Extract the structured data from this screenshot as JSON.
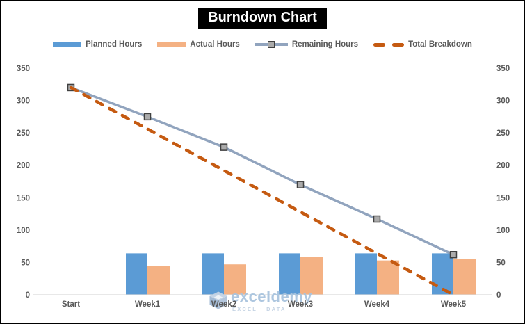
{
  "title": {
    "text": "Burndown Chart",
    "bg_color": "#000000",
    "text_color": "#ffffff"
  },
  "legend": {
    "position": "top",
    "items": [
      {
        "label": "Planned Hours",
        "swatch": "bar",
        "color": "#5B9BD5"
      },
      {
        "label": "Actual Hours",
        "swatch": "bar",
        "color": "#F4B183"
      },
      {
        "label": "Remaining Hours",
        "swatch": "line-marker",
        "color": "#91A4BE"
      },
      {
        "label": "Total Breakdown",
        "swatch": "dashed-line",
        "color": "#C55A11"
      }
    ]
  },
  "watermark": {
    "brand": "exceldemy",
    "tagline": "EXCEL · DATA",
    "logo": "cube-logo",
    "brand_color": "#a9c4de"
  },
  "chart_data": {
    "type": "combo-bar-line",
    "title": "Burndown Chart",
    "categories": [
      "Start",
      "Week1",
      "Week2",
      "Week3",
      "Week4",
      "Week5"
    ],
    "series": [
      {
        "name": "Planned Hours",
        "type": "bar",
        "color": "#5B9BD5",
        "values": [
          null,
          64,
          64,
          64,
          64,
          64
        ]
      },
      {
        "name": "Actual Hours",
        "type": "bar",
        "color": "#F4B183",
        "values": [
          null,
          45,
          47,
          58,
          53,
          55
        ]
      },
      {
        "name": "Remaining Hours",
        "type": "line",
        "style": "solid",
        "marker": "square",
        "color": "#91A4BE",
        "marker_fill": "#ABABAB",
        "marker_stroke": "#404040",
        "values": [
          320,
          275,
          228,
          170,
          117,
          62
        ]
      },
      {
        "name": "Total Breakdown",
        "type": "line",
        "style": "dashed",
        "color": "#C55A11",
        "values": [
          320,
          256,
          192,
          128,
          64,
          0
        ]
      }
    ],
    "y_ticks": [
      0,
      50,
      100,
      150,
      200,
      250,
      300,
      350
    ],
    "ylim": [
      0,
      350
    ],
    "grid": false,
    "dual_axis_labels": true,
    "axis_line_color": "#D9D9D9",
    "tick_label_color": "#595959",
    "legend_position": "top"
  }
}
